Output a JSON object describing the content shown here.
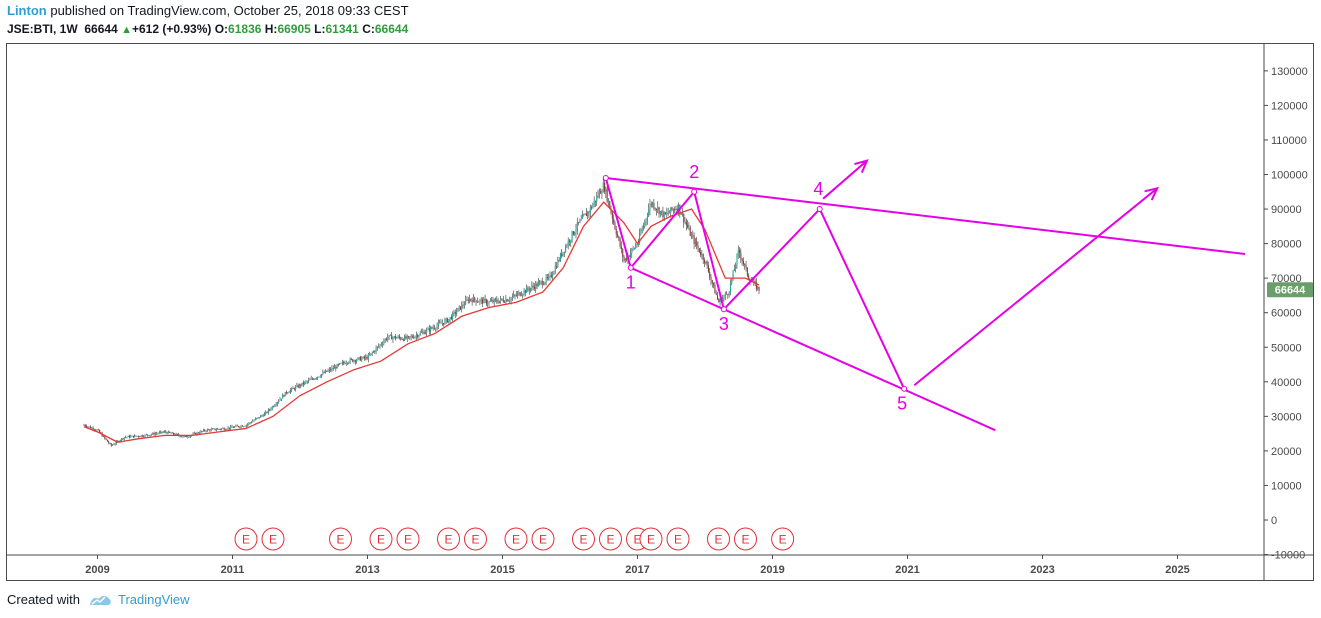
{
  "header": {
    "author": "Linton",
    "published_text": "published on TradingView.com, October 25, 2018 09:33 CEST",
    "symbol": "JSE:BTI, 1W",
    "last": "66644",
    "change_arrow": "▲",
    "change": "+612 (+0.93%)",
    "open_label": "O:",
    "open": "61836",
    "high_label": "H:",
    "high": "66905",
    "low_label": "L:",
    "low": "61341",
    "close_label": "C:",
    "close": "66644"
  },
  "price_tag": "66644",
  "footer": {
    "created_with": "Created with",
    "brand": "TradingView"
  },
  "colors": {
    "candle_up": "#26a69a",
    "candle_down": "#8a3a3a",
    "ma_line": "#e53935",
    "annotation": "#e600e6",
    "earnings": "#e0303a",
    "price_tag_bg": "#6a9e6a"
  },
  "chart_data": {
    "type": "line",
    "title": "",
    "xlabel": "",
    "ylabel": "",
    "xlim": [
      2008.8,
      2026.3
    ],
    "ylim": [
      -10000,
      140000
    ],
    "x_ticks": [
      2009,
      2011,
      2013,
      2015,
      2017,
      2019,
      2021,
      2023,
      2025
    ],
    "x_tick_labels": [
      "2009",
      "2011",
      "2013",
      "2015",
      "2017",
      "2019",
      "2021",
      "2023",
      "2025"
    ],
    "y_ticks": [
      -10000,
      0,
      10000,
      20000,
      30000,
      40000,
      50000,
      60000,
      70000,
      80000,
      90000,
      100000,
      110000,
      120000,
      130000
    ],
    "y_tick_labels": [
      "-10000",
      "0",
      "10000",
      "20000",
      "30000",
      "40000",
      "50000",
      "60000",
      "70000",
      "80000",
      "90000",
      "100000",
      "110000",
      "120000",
      "130000"
    ],
    "grid": false,
    "series": [
      {
        "kind": "price",
        "x": [
          2008.8,
          2009.0,
          2009.2,
          2009.4,
          2009.7,
          2010.0,
          2010.3,
          2010.6,
          2010.9,
          2011.2,
          2011.5,
          2011.8,
          2012.1,
          2012.4,
          2012.7,
          2013.0,
          2013.3,
          2013.6,
          2013.9,
          2014.2,
          2014.5,
          2014.8,
          2015.1,
          2015.4,
          2015.7,
          2015.9,
          2016.1,
          2016.3,
          2016.5,
          2016.8,
          2017.0,
          2017.2,
          2017.4,
          2017.6,
          2017.8,
          2018.0,
          2018.2,
          2018.35,
          2018.5,
          2018.65,
          2018.8
        ],
        "y": [
          27500,
          26000,
          21500,
          24000,
          24500,
          25500,
          24000,
          26000,
          26500,
          27500,
          31000,
          37000,
          40000,
          43000,
          46000,
          47000,
          53000,
          52500,
          55000,
          58000,
          64000,
          63000,
          64000,
          67000,
          70000,
          78000,
          85000,
          90000,
          97000,
          75000,
          80000,
          92000,
          88000,
          91000,
          82000,
          75000,
          63000,
          66000,
          78000,
          70000,
          66644
        ]
      },
      {
        "kind": "moving_average",
        "x": [
          2008.8,
          2009.0,
          2009.3,
          2009.6,
          2010.0,
          2010.4,
          2010.8,
          2011.2,
          2011.6,
          2012.0,
          2012.4,
          2012.8,
          2013.2,
          2013.6,
          2014.0,
          2014.4,
          2014.8,
          2015.2,
          2015.6,
          2015.9,
          2016.2,
          2016.5,
          2016.8,
          2017.0,
          2017.2,
          2017.5,
          2017.8,
          2018.0,
          2018.3,
          2018.6,
          2018.8
        ],
        "y": [
          27000,
          25500,
          22500,
          23500,
          24500,
          24500,
          25500,
          26500,
          30000,
          36000,
          40000,
          43500,
          46000,
          51000,
          54000,
          59000,
          61500,
          63000,
          66000,
          73000,
          85000,
          92000,
          86000,
          80000,
          85000,
          88000,
          90000,
          84000,
          70000,
          70000,
          68000
        ]
      }
    ],
    "annotations": {
      "wave_labels": [
        {
          "label": "1",
          "x": 2016.9,
          "y": 67000
        },
        {
          "label": "2",
          "x": 2017.84,
          "y": 99000
        },
        {
          "label": "3",
          "x": 2018.28,
          "y": 55000
        },
        {
          "label": "4",
          "x": 2019.68,
          "y": 94000
        },
        {
          "label": "5",
          "x": 2020.92,
          "y": 32000
        }
      ],
      "wave_path": [
        {
          "x": 2016.53,
          "y": 99000
        },
        {
          "x": 2016.9,
          "y": 73000
        },
        {
          "x": 2017.84,
          "y": 95000
        },
        {
          "x": 2018.28,
          "y": 61000
        },
        {
          "x": 2019.7,
          "y": 90000
        },
        {
          "x": 2020.95,
          "y": 38000
        }
      ],
      "upper_trendline": [
        {
          "x": 2016.53,
          "y": 99000
        },
        {
          "x": 2026.0,
          "y": 77000
        }
      ],
      "lower_trendline": [
        {
          "x": 2016.9,
          "y": 73000
        },
        {
          "x": 2022.3,
          "y": 26000
        }
      ],
      "arrows": [
        {
          "from": {
            "x": 2019.75,
            "y": 93000
          },
          "to": {
            "x": 2020.4,
            "y": 104000
          }
        },
        {
          "from": {
            "x": 2021.1,
            "y": 39000
          },
          "to": {
            "x": 2024.7,
            "y": 96000
          }
        }
      ]
    },
    "earnings_markers": {
      "label": "E",
      "x": [
        2011.2,
        2011.6,
        2012.6,
        2013.2,
        2013.6,
        2014.2,
        2014.6,
        2015.2,
        2015.6,
        2016.2,
        2016.6,
        2017.0,
        2017.2,
        2017.6,
        2018.2,
        2018.6,
        2019.15
      ]
    }
  }
}
